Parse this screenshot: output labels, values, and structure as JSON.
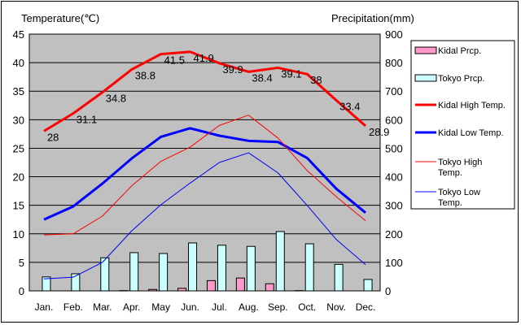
{
  "chart_data": {
    "type": "line",
    "left_axis_label": "Temperature(℃)",
    "right_axis_label": "Precipitation(mm)",
    "categories": [
      "Jan.",
      "Feb.",
      "Mar.",
      "Apr.",
      "May",
      "Jun.",
      "Jul.",
      "Aug.",
      "Sep.",
      "Oct.",
      "Nov.",
      "Dec."
    ],
    "left_ylim": [
      0,
      45
    ],
    "left_ticks": [
      0,
      5,
      10,
      15,
      20,
      25,
      30,
      35,
      40,
      45
    ],
    "right_ylim": [
      0,
      900
    ],
    "right_ticks": [
      0,
      100,
      200,
      300,
      400,
      500,
      600,
      700,
      800,
      900
    ],
    "plot_background": "#c0c0c0",
    "grid": true,
    "legend_position": "right",
    "bars": [
      {
        "name": "Kidal Prcp.",
        "color": "#ff99cc",
        "values": [
          0,
          0,
          0,
          1,
          5,
          9,
          36,
          45,
          25,
          1,
          0,
          0
        ]
      },
      {
        "name": "Tokyo Prcp.",
        "color": "#ccffff",
        "values": [
          49,
          60,
          116,
          134,
          131,
          168,
          160,
          156,
          208,
          165,
          93,
          40
        ]
      }
    ],
    "lines": [
      {
        "name": "Kidal High Temp.",
        "color": "#ff0000",
        "width": 3,
        "values": [
          28,
          31.1,
          34.8,
          38.8,
          41.5,
          41.9,
          39.9,
          38.4,
          39.1,
          38,
          33.4,
          28.9
        ],
        "labels": [
          "28",
          "31.1",
          "34.8",
          "38.8",
          "41.5",
          "41.9",
          "39.9",
          "38.4",
          "39.1",
          "38",
          "33.4",
          "28.9"
        ]
      },
      {
        "name": "Kidal Low Temp.",
        "color": "#0000ff",
        "width": 3,
        "values": [
          12.5,
          14.8,
          18.8,
          23.2,
          27,
          28.5,
          27.2,
          26.3,
          26.1,
          23.3,
          17.9,
          13.7
        ]
      },
      {
        "name": "Tokyo High Temp.",
        "color": "#ff0000",
        "width": 1,
        "values": [
          9.8,
          10,
          13.1,
          18.4,
          22.7,
          25.2,
          29.0,
          30.8,
          26.8,
          21.1,
          16.5,
          12.3
        ]
      },
      {
        "name": "Tokyo Low Temp.",
        "color": "#0000ff",
        "width": 1,
        "values": [
          2.1,
          2.4,
          5.0,
          10.5,
          15.1,
          18.9,
          22.5,
          24.2,
          20.7,
          15.0,
          9.0,
          4.6
        ]
      }
    ],
    "legend": [
      {
        "label": "Kidal Prcp.",
        "kind": "box",
        "color": "#ff99cc"
      },
      {
        "label": "Tokyo Prcp.",
        "kind": "box",
        "color": "#ccffff"
      },
      {
        "label": "Kidal High Temp.",
        "kind": "line",
        "color": "#ff0000",
        "width": 3
      },
      {
        "label": "Kidal Low Temp.",
        "kind": "line",
        "color": "#0000ff",
        "width": 3
      },
      {
        "label": "Tokyo High Temp.",
        "kind": "line",
        "color": "#ff0000",
        "width": 1
      },
      {
        "label": "Tokyo Low Temp.",
        "kind": "line",
        "color": "#0000ff",
        "width": 1
      }
    ]
  }
}
